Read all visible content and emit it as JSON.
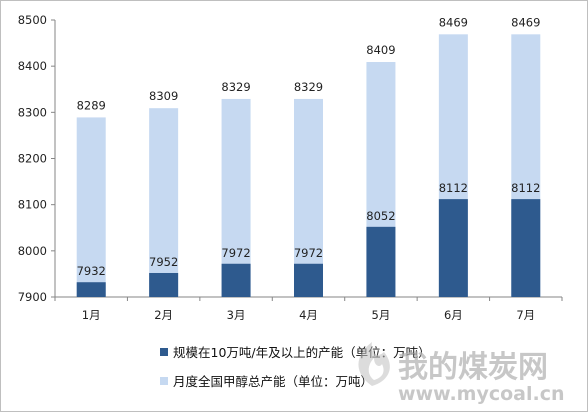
{
  "chart_data": {
    "type": "bar",
    "stacked": false,
    "overlapped": true,
    "categories": [
      "1月",
      "2月",
      "3月",
      "4月",
      "5月",
      "6月",
      "7月"
    ],
    "series": [
      {
        "name": "规模在10万吨/年及以上的产能（单位：万吨）",
        "values": [
          7932,
          7952,
          7972,
          7972,
          8052,
          8112,
          8112
        ],
        "color": "#2e5a8e"
      },
      {
        "name": "月度全国甲醇总产能（单位：万吨）",
        "values": [
          8289,
          8309,
          8329,
          8329,
          8409,
          8469,
          8469
        ],
        "color": "#c6d9f1"
      }
    ],
    "ylim": [
      7900,
      8500
    ],
    "yticks": [
      "7900",
      "8000",
      "8100",
      "8200",
      "8300",
      "8400",
      "8500"
    ],
    "grid": false,
    "legend_position": "bottom-left"
  },
  "watermark": {
    "text": "我的煤炭网",
    "url": "www.mycoal.cn"
  }
}
